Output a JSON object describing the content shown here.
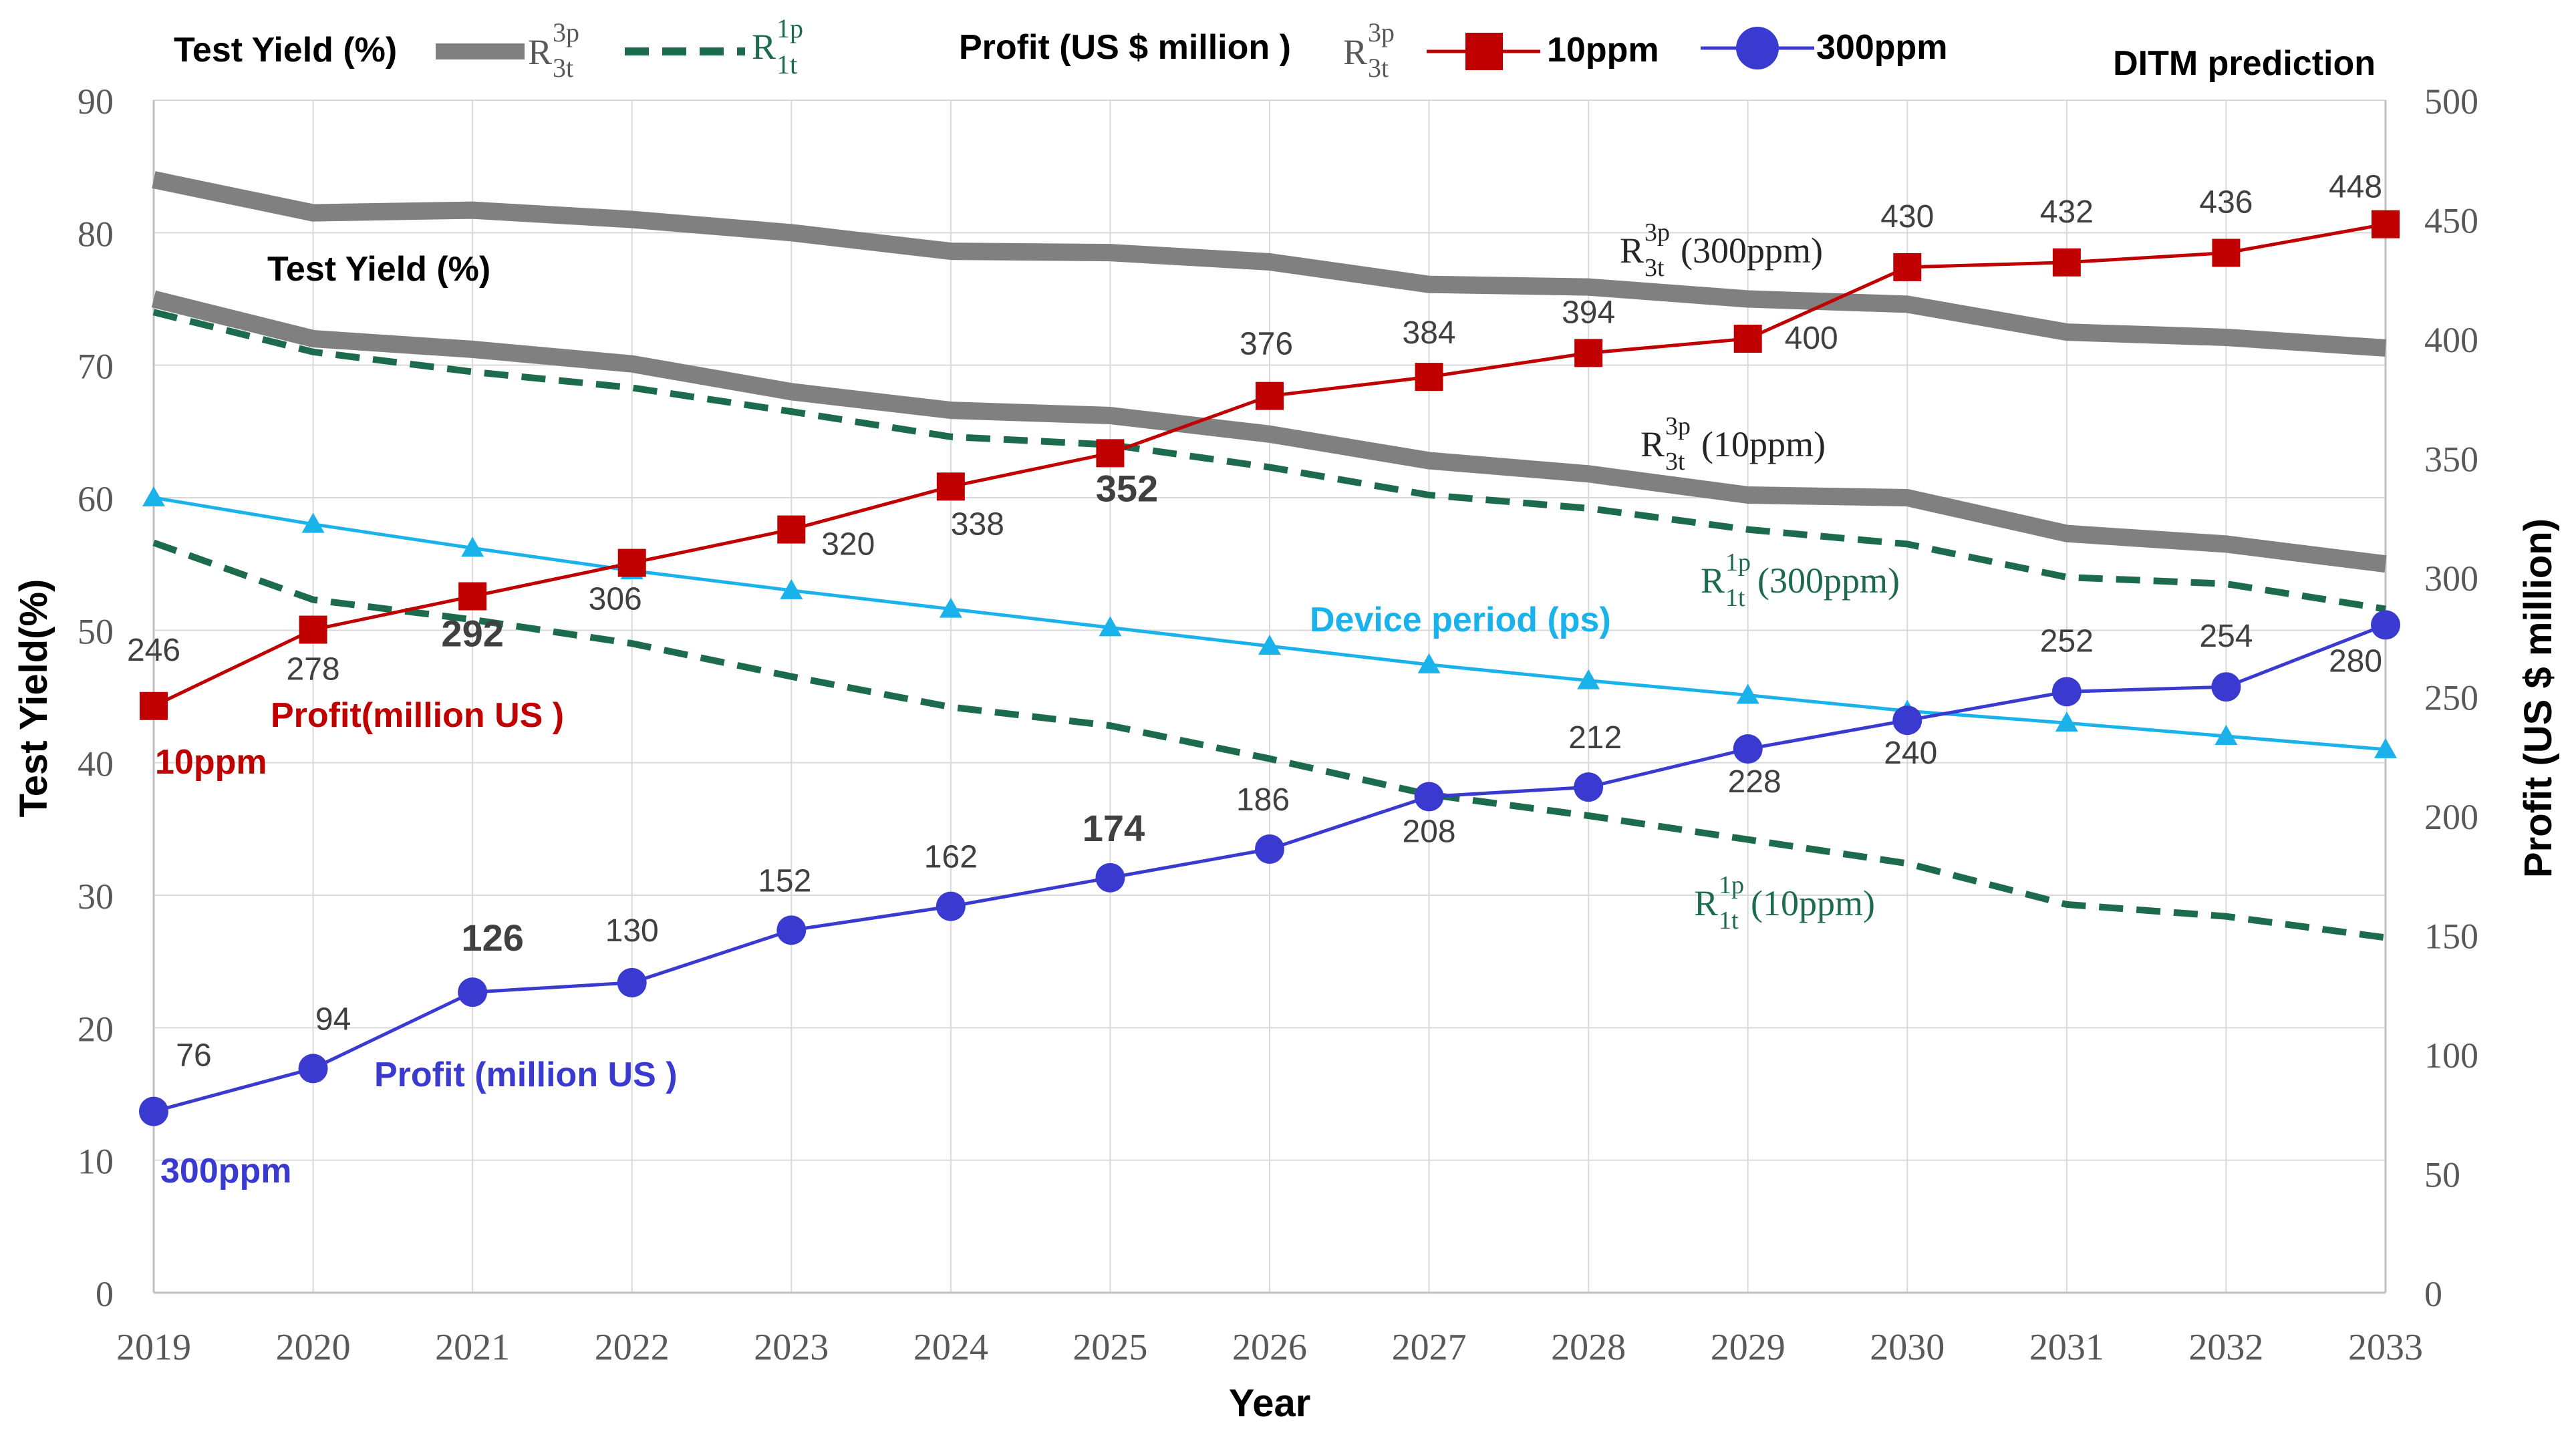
{
  "chart_data": {
    "type": "line",
    "title": "DITM prediction",
    "xlabel": "Year",
    "ylabel": "Test Yield(%)",
    "ylabel_right": "Profit (US $ million)",
    "ylim": [
      0,
      90
    ],
    "ylim_right": [
      0,
      500
    ],
    "x": [
      2019,
      2020,
      2021,
      2022,
      2023,
      2024,
      2025,
      2026,
      2027,
      2028,
      2029,
      2030,
      2031,
      2032,
      2033
    ],
    "left_ticks": [
      0,
      10,
      20,
      30,
      40,
      50,
      60,
      70,
      80,
      90
    ],
    "right_ticks": [
      0,
      50,
      100,
      150,
      200,
      250,
      300,
      350,
      400,
      450,
      500
    ],
    "grid": true,
    "series": [
      {
        "name": "R3t3p (300ppm)",
        "axis": "left",
        "style": "thick-gray",
        "color": "#808080",
        "values": [
          84,
          81.5,
          81.7,
          81,
          80,
          78.6,
          78.5,
          77.8,
          76.1,
          75.9,
          75,
          74.6,
          72.5,
          72.1,
          71.3
        ]
      },
      {
        "name": "R3t3p (10ppm)",
        "axis": "left",
        "style": "thick-gray",
        "color": "#808080",
        "values": [
          75,
          72,
          71.2,
          70.1,
          68,
          66.6,
          66.2,
          64.8,
          62.8,
          61.8,
          60.2,
          60,
          57.3,
          56.5,
          55
        ]
      },
      {
        "name": "R1t1p (300ppm)",
        "axis": "left",
        "style": "dashed-green",
        "color": "#1d6b4d",
        "values": [
          74,
          71,
          69.5,
          68.3,
          66.5,
          64.6,
          64,
          62.3,
          60.2,
          59.2,
          57.6,
          56.5,
          54,
          53.5,
          51.6
        ]
      },
      {
        "name": "R1t1p (10ppm)",
        "axis": "left",
        "style": "dashed-green",
        "color": "#1d6b4d",
        "values": [
          56.6,
          52.3,
          50.8,
          49,
          46.5,
          44.2,
          42.8,
          40.3,
          37.6,
          36,
          34.2,
          32.4,
          29.3,
          28.4,
          26.8
        ]
      },
      {
        "name": "Device period (ps)",
        "axis": "left",
        "style": "triangle",
        "color": "#1ab2ea",
        "values": [
          60,
          58,
          56.2,
          54.5,
          53,
          51.6,
          50.2,
          48.8,
          47.4,
          46.2,
          45.1,
          43.9,
          43,
          42,
          41
        ]
      },
      {
        "name": "10ppm",
        "axis": "right",
        "style": "square",
        "color": "#c00000",
        "values": [
          246,
          278,
          292,
          306,
          320,
          338,
          352,
          376,
          384,
          394,
          400,
          430,
          432,
          436,
          448
        ]
      },
      {
        "name": "300ppm",
        "axis": "right",
        "style": "circle",
        "color": "#3a3ad0",
        "values": [
          76,
          94,
          126,
          130,
          152,
          162,
          174,
          186,
          208,
          212,
          228,
          240,
          252,
          254,
          280
        ]
      }
    ],
    "annotations": {
      "test_yield_title": "Test Yield (%)",
      "r3t_300": "(300ppm)",
      "r3t_10": "(10ppm)",
      "r1t_300": "(300ppm)",
      "r1t_10": "(10ppm)",
      "device_period": "Device period (ps)",
      "profit_red": "Profit(million US )",
      "ppm_red": "10ppm",
      "profit_blue": "Profit (million US )",
      "ppm_blue": "300ppm"
    },
    "legend": {
      "test_yield_label": "Test Yield (%)",
      "profit_label": "Profit (US $ million )",
      "red_label": "10ppm",
      "blue_label": "300ppm",
      "r_symbol": "R",
      "sup_3p": "3p",
      "sub_3t": "3t",
      "sup_1p": "1p",
      "sub_1t": "1t"
    },
    "colors": {
      "gray": "#808080",
      "green": "#1d6b4d",
      "cyan": "#1ab2ea",
      "red": "#c00000",
      "blue": "#3a3ad0",
      "grid": "#d9d9d9",
      "text": "#595959"
    }
  }
}
